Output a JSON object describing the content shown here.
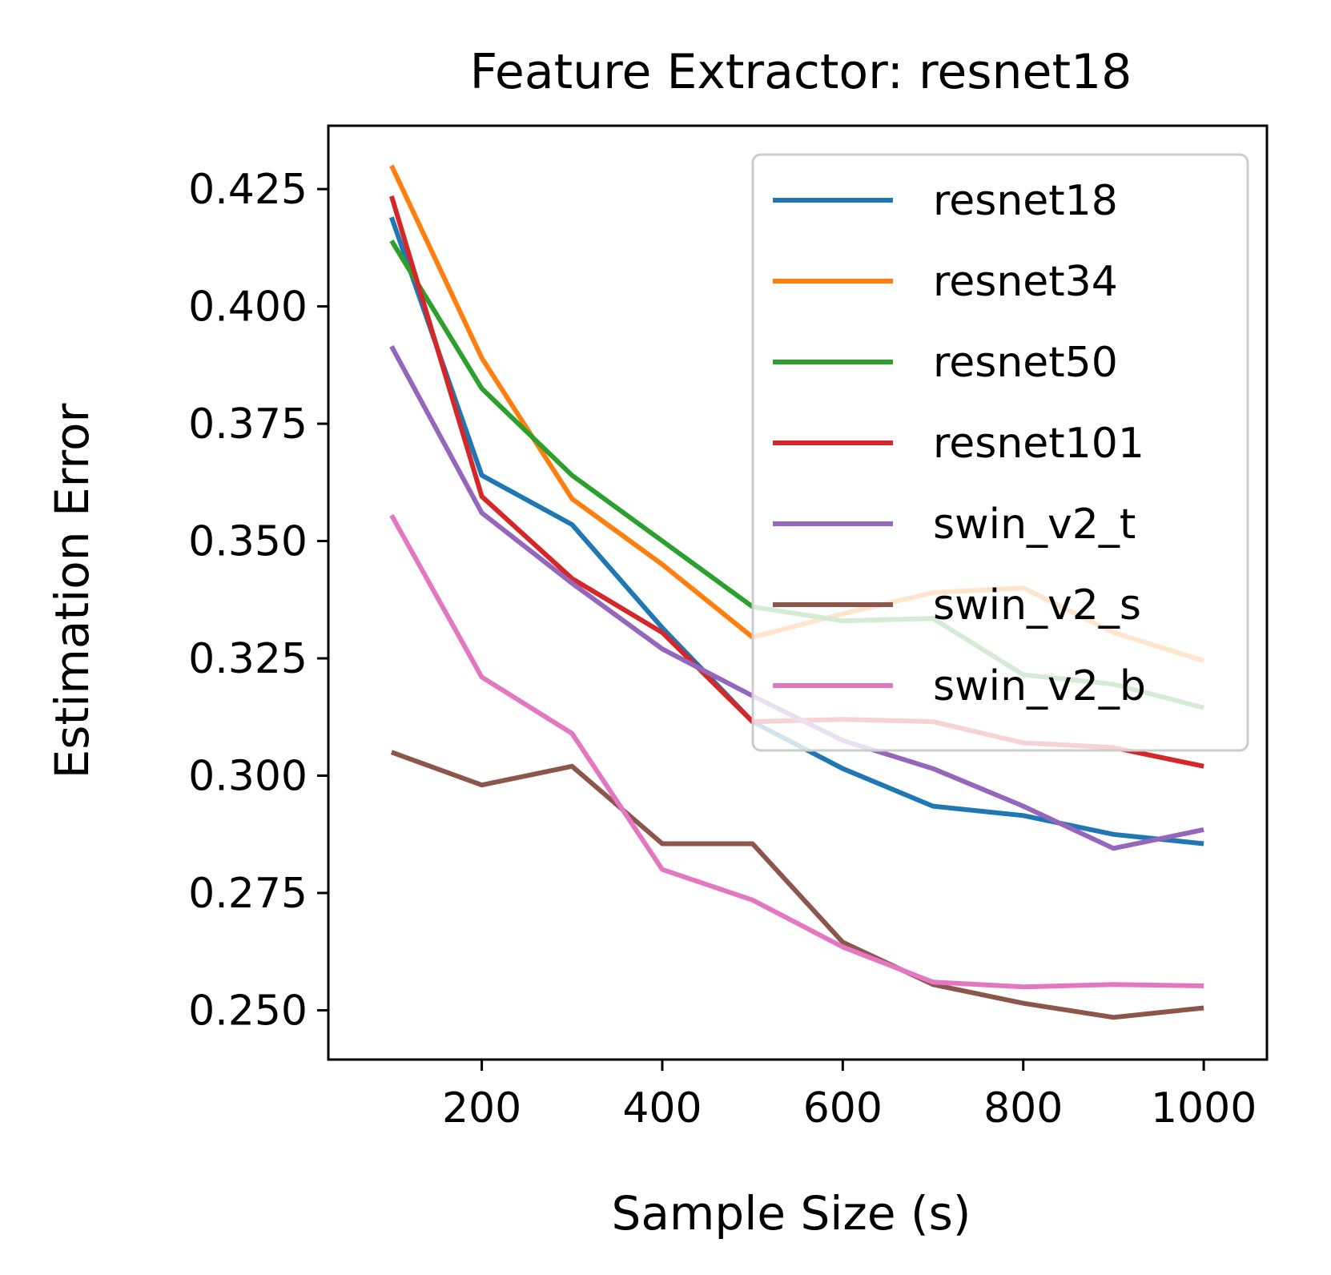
{
  "chart_data": {
    "type": "line",
    "title": "Feature Extractor: resnet18",
    "xlabel": "Sample Size (s)",
    "ylabel": "Estimation Error",
    "xlim": [
      30,
      1070
    ],
    "ylim": [
      0.2395,
      0.4385
    ],
    "xticks": [
      200,
      400,
      600,
      800,
      1000
    ],
    "xtick_labels": [
      "200",
      "400",
      "600",
      "800",
      "1000"
    ],
    "yticks": [
      0.25,
      0.275,
      0.3,
      0.325,
      0.35,
      0.375,
      0.4,
      0.425
    ],
    "ytick_labels": [
      "0.250",
      "0.275",
      "0.300",
      "0.325",
      "0.350",
      "0.375",
      "0.400",
      "0.425"
    ],
    "legend_position": "top-right",
    "grid": false,
    "x": [
      100,
      200,
      300,
      400,
      500,
      600,
      700,
      800,
      900,
      1000
    ],
    "series": [
      {
        "name": "resnet18",
        "color": "#1f77b4",
        "values": [
          0.419,
          0.364,
          0.3535,
          0.3315,
          0.3115,
          0.3015,
          0.2935,
          0.2915,
          0.2875,
          0.2855
        ]
      },
      {
        "name": "resnet34",
        "color": "#ff7f0e",
        "values": [
          0.43,
          0.389,
          0.359,
          0.345,
          0.3295,
          0.3345,
          0.339,
          0.34,
          0.3305,
          0.3245
        ]
      },
      {
        "name": "resnet50",
        "color": "#2ca02c",
        "values": [
          0.414,
          0.3825,
          0.364,
          0.35,
          0.336,
          0.333,
          0.3335,
          0.3215,
          0.3195,
          0.3145
        ]
      },
      {
        "name": "resnet101",
        "color": "#d62728",
        "values": [
          0.4235,
          0.3595,
          0.342,
          0.3305,
          0.3115,
          0.312,
          0.3115,
          0.307,
          0.306,
          0.302
        ]
      },
      {
        "name": "swin_v2_t",
        "color": "#9467bd",
        "values": [
          0.3915,
          0.356,
          0.341,
          0.327,
          0.317,
          0.3075,
          0.3015,
          0.2935,
          0.2845,
          0.2885
        ]
      },
      {
        "name": "swin_v2_s",
        "color": "#8c564b",
        "values": [
          0.305,
          0.298,
          0.302,
          0.2855,
          0.2855,
          0.2645,
          0.2555,
          0.2515,
          0.2485,
          0.2505
        ]
      },
      {
        "name": "swin_v2_b",
        "color": "#e377c2",
        "values": [
          0.3555,
          0.321,
          0.309,
          0.28,
          0.2735,
          0.2635,
          0.256,
          0.255,
          0.2555,
          0.2552
        ]
      }
    ]
  }
}
